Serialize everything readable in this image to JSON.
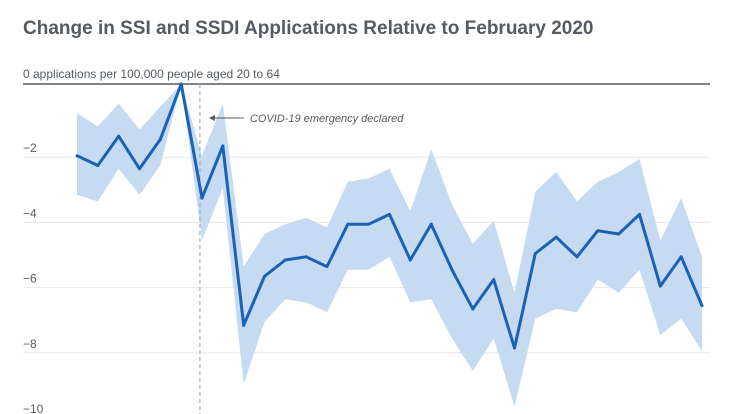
{
  "chart_data": {
    "type": "line",
    "title": "Change in SSI and SSDI Applications Relative to February 2020",
    "ylabel": "",
    "xlabel": "",
    "ylim": [
      -10,
      0
    ],
    "grid": "horizontal",
    "y_ticks": [
      {
        "value": 0,
        "label": "0 applications per 100,000 people aged 20 to 64"
      },
      {
        "value": -2,
        "label": "−2"
      },
      {
        "value": -4,
        "label": "−4"
      },
      {
        "value": -6,
        "label": "−6"
      },
      {
        "value": -8,
        "label": "−8"
      },
      {
        "value": -10,
        "label": "−10"
      }
    ],
    "x": [
      0,
      1,
      2,
      3,
      4,
      5,
      6,
      7,
      8,
      9,
      10,
      11,
      12,
      13,
      14,
      15,
      16,
      17,
      18,
      19,
      20,
      21,
      22,
      23,
      24,
      25,
      26,
      27,
      28,
      29,
      30
    ],
    "series": [
      {
        "name": "",
        "color": "#1a63b4",
        "values": [
          -2.2,
          -2.5,
          -1.6,
          -2.6,
          -1.7,
          0.0,
          -3.5,
          -1.9,
          -7.4,
          -5.9,
          -5.4,
          -5.3,
          -5.6,
          -4.3,
          -4.3,
          -4.0,
          -5.4,
          -4.3,
          -5.7,
          -6.9,
          -6.0,
          -8.1,
          -5.2,
          -4.7,
          -5.3,
          -4.5,
          -4.6,
          -4.0,
          -6.2,
          -5.3,
          -6.8
        ],
        "upper": [
          -0.9,
          -1.3,
          -0.6,
          -1.4,
          -0.7,
          0.0,
          -2.2,
          -0.6,
          -5.6,
          -4.6,
          -4.3,
          -4.1,
          -4.4,
          -3.0,
          -2.9,
          -2.6,
          -3.9,
          -2.0,
          -3.7,
          -4.9,
          -4.2,
          -6.4,
          -3.3,
          -2.7,
          -3.6,
          -3.0,
          -2.7,
          -2.3,
          -4.8,
          -3.5,
          -5.3
        ],
        "lower": [
          -3.4,
          -3.6,
          -2.6,
          -3.4,
          -2.5,
          0.0,
          -4.8,
          -3.2,
          -9.2,
          -7.3,
          -6.6,
          -6.7,
          -7.0,
          -5.7,
          -5.7,
          -5.3,
          -6.7,
          -6.6,
          -7.8,
          -8.8,
          -7.8,
          -9.9,
          -7.2,
          -6.9,
          -7.0,
          -6.0,
          -6.4,
          -5.7,
          -7.7,
          -7.2,
          -8.2
        ]
      }
    ],
    "band_color": "#c6daf2",
    "gridline_color": "#e8e8e8",
    "axis_color": "#555b60",
    "annotation": {
      "text": "COVID-19 emergency declared",
      "at_x": 5.9
    }
  }
}
